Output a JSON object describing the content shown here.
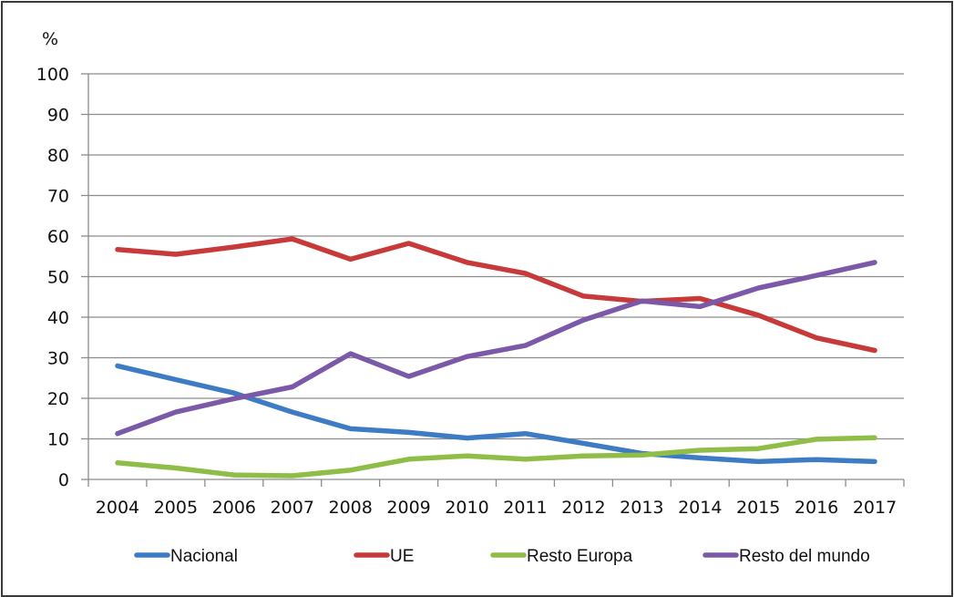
{
  "chart_data": {
    "type": "line",
    "title": "",
    "xlabel": "",
    "ylabel": "%",
    "ylim": [
      0,
      100
    ],
    "yticks": [
      "0",
      "10",
      "20",
      "30",
      "40",
      "50",
      "60",
      "70",
      "80",
      "90",
      "100"
    ],
    "grid": true,
    "legend_position": "bottom",
    "categories": [
      "2004",
      "2005",
      "2006",
      "2007",
      "2008",
      "2009",
      "2010",
      "2011",
      "2012",
      "2013",
      "2014",
      "2015",
      "2016",
      "2017"
    ],
    "series": [
      {
        "name": "Nacional",
        "color": "#3d7cc4",
        "values": [
          28.0,
          24.6,
          21.3,
          16.6,
          12.5,
          11.6,
          10.2,
          11.3,
          8.9,
          6.4,
          5.3,
          4.4,
          4.9,
          4.4
        ]
      },
      {
        "name": "UE",
        "color": "#c83a3a",
        "values": [
          56.7,
          55.5,
          57.3,
          59.3,
          54.3,
          58.2,
          53.5,
          50.8,
          45.2,
          43.9,
          44.6,
          40.5,
          34.9,
          31.8
        ]
      },
      {
        "name": "Resto Europa",
        "color": "#8fbd47",
        "values": [
          4.1,
          2.8,
          1.1,
          0.9,
          2.3,
          5.0,
          5.8,
          5.0,
          5.8,
          6.0,
          7.2,
          7.6,
          9.9,
          10.3
        ]
      },
      {
        "name": "Resto del mundo",
        "color": "#7b59a8",
        "values": [
          11.3,
          16.6,
          19.9,
          22.8,
          31.0,
          25.4,
          30.3,
          33.0,
          39.3,
          44.0,
          42.6,
          47.2,
          50.3,
          53.5
        ]
      }
    ]
  }
}
